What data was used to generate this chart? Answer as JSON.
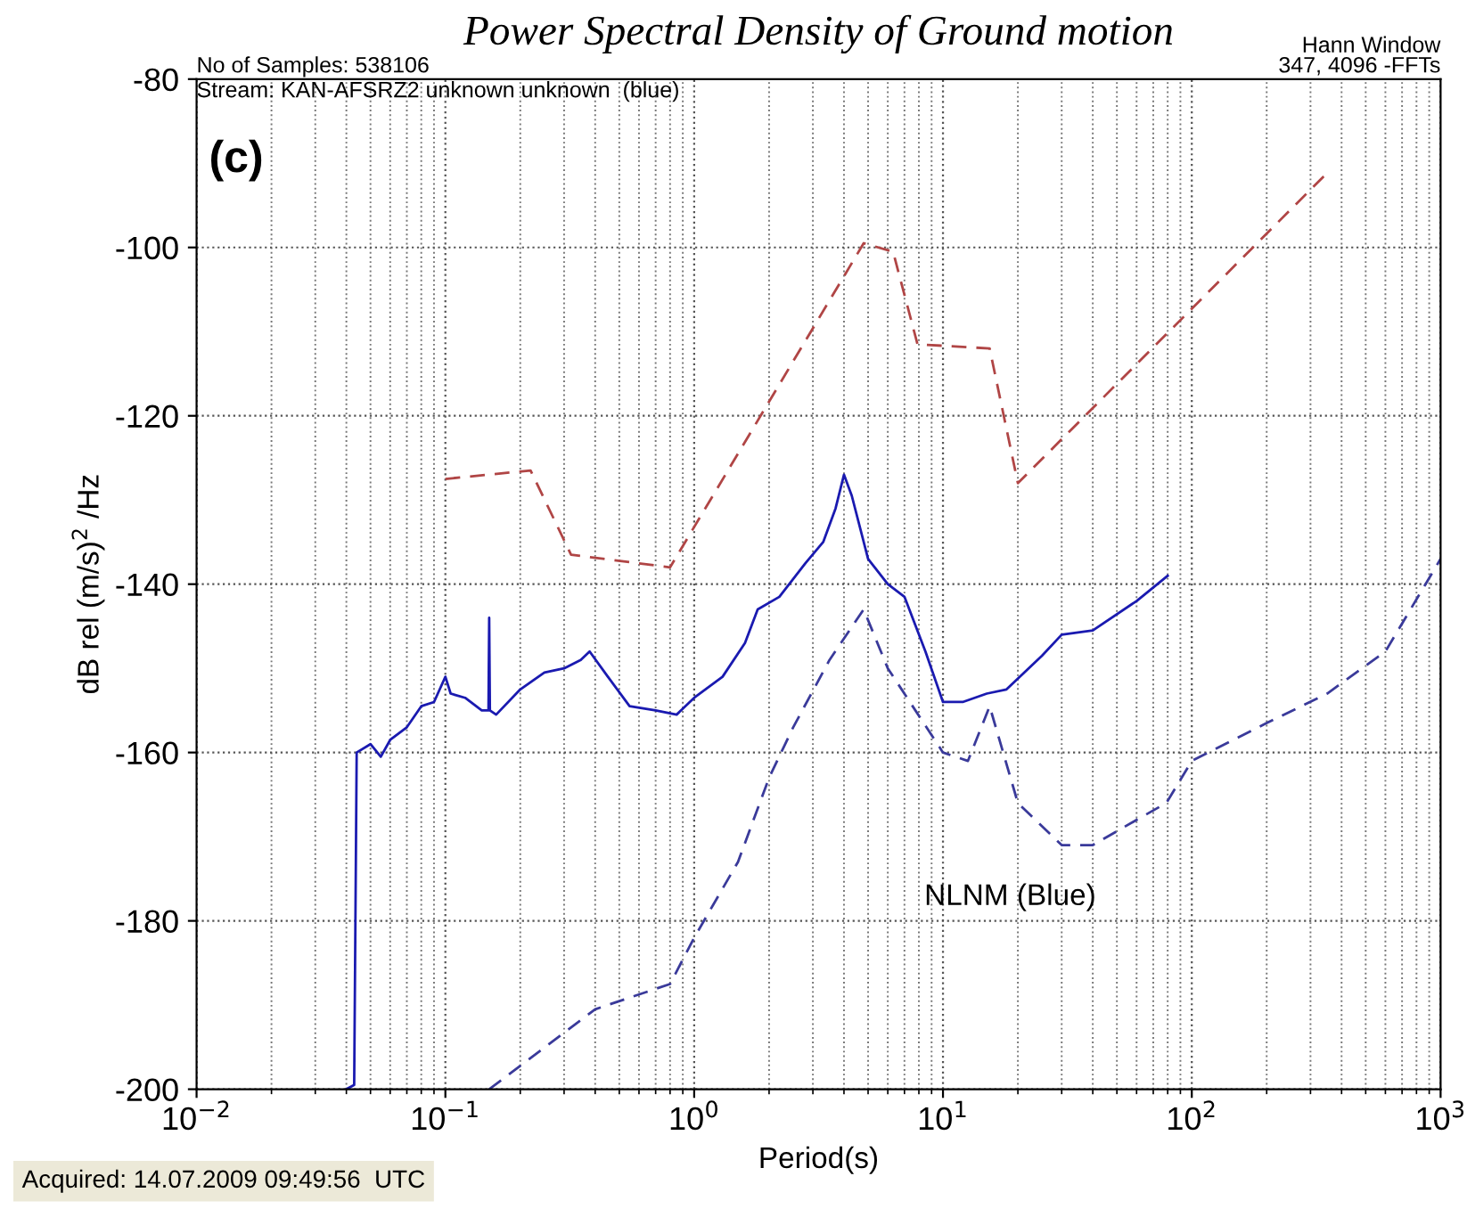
{
  "chart_data": {
    "type": "line",
    "title": "Power Spectral Density of Ground motion",
    "xlabel": "Period(s)",
    "ylabel": "dB rel (m/s)$^{2}$ /Hz",
    "log": "x",
    "grid": true,
    "legend": false,
    "xlim": [
      0.01,
      1000
    ],
    "xticks": [
      {
        "value": 0.01,
        "label": "10$^{−2}$"
      },
      {
        "value": 0.1,
        "label": "10$^{−1}$"
      },
      {
        "value": 1,
        "label": "10$^{0}$"
      },
      {
        "value": 10,
        "label": "10$^{1}$"
      },
      {
        "value": 100,
        "label": "10$^{2}$"
      },
      {
        "value": 1000,
        "label": "10$^{3}$"
      }
    ],
    "ylim": [
      -200,
      -80
    ],
    "yticks": [
      -200,
      -180,
      -160,
      -140,
      -120,
      -100,
      -80
    ],
    "annotations": [
      "No of Samples: 538106",
      "Stream: KAN-AFSRZ2 unknown unknown  (blue)",
      "Hann Window",
      "347, 4096 -FFTs",
      "(c)",
      "NLNM (Blue)",
      "Acquired: 14.07.2009 09:49:56  UTC"
    ],
    "series": [
      {
        "color": "#b04545",
        "line_style": "dashed",
        "x": [
          0.1,
          0.22,
          0.32,
          0.8,
          4.8,
          6.3,
          7.9,
          15.4,
          20,
          354
        ],
        "values": [
          -127.5,
          -126.5,
          -136.5,
          -138,
          -99.5,
          -100.5,
          -111.5,
          -112,
          -128,
          -91
        ]
      },
      {
        "color": "#3a3a9a",
        "line_style": "dashed",
        "x": [
          0.15,
          0.4,
          0.8,
          1.0,
          1.5,
          2,
          2.5,
          3.5,
          4.8,
          6,
          10,
          12.6,
          15.4,
          20,
          30,
          40,
          60,
          79,
          100,
          200,
          350,
          600,
          1000
        ],
        "values": [
          -200,
          -190.5,
          -187.5,
          -182,
          -173,
          -163,
          -157,
          -149,
          -143,
          -150,
          -160,
          -161,
          -154.5,
          -166,
          -171,
          -171,
          -168,
          -166,
          -161,
          -156.5,
          -153,
          -148,
          -137
        ]
      },
      {
        "color": "#1a1ab0",
        "line_style": "solid",
        "x": [
          0.04,
          0.043,
          0.044,
          0.05,
          0.055,
          0.06,
          0.07,
          0.08,
          0.09,
          0.1,
          0.105,
          0.12,
          0.14,
          0.149,
          0.15,
          0.151,
          0.16,
          0.2,
          0.25,
          0.3,
          0.35,
          0.38,
          0.45,
          0.55,
          0.7,
          0.85,
          1,
          1.3,
          1.6,
          1.8,
          2.2,
          2.8,
          3.3,
          3.7,
          4.0,
          4.3,
          5,
          6,
          7,
          8.5,
          10,
          12,
          15,
          18,
          25,
          30,
          40,
          60,
          80
        ],
        "values": [
          -200,
          -199.5,
          -160,
          -159,
          -160.5,
          -158.5,
          -157,
          -154.5,
          -154,
          -151,
          -153,
          -153.5,
          -155,
          -155,
          -144,
          -155,
          -155.5,
          -152.5,
          -150.5,
          -150,
          -149,
          -148,
          -151,
          -154.5,
          -155,
          -155.5,
          -153.5,
          -151,
          -147,
          -143,
          -141.5,
          -137.5,
          -135,
          -131,
          -127,
          -129.5,
          -137,
          -140,
          -141.5,
          -148,
          -154,
          -154,
          -153,
          -152.5,
          -148.5,
          -146,
          -145.5,
          -142,
          -139
        ]
      }
    ]
  }
}
